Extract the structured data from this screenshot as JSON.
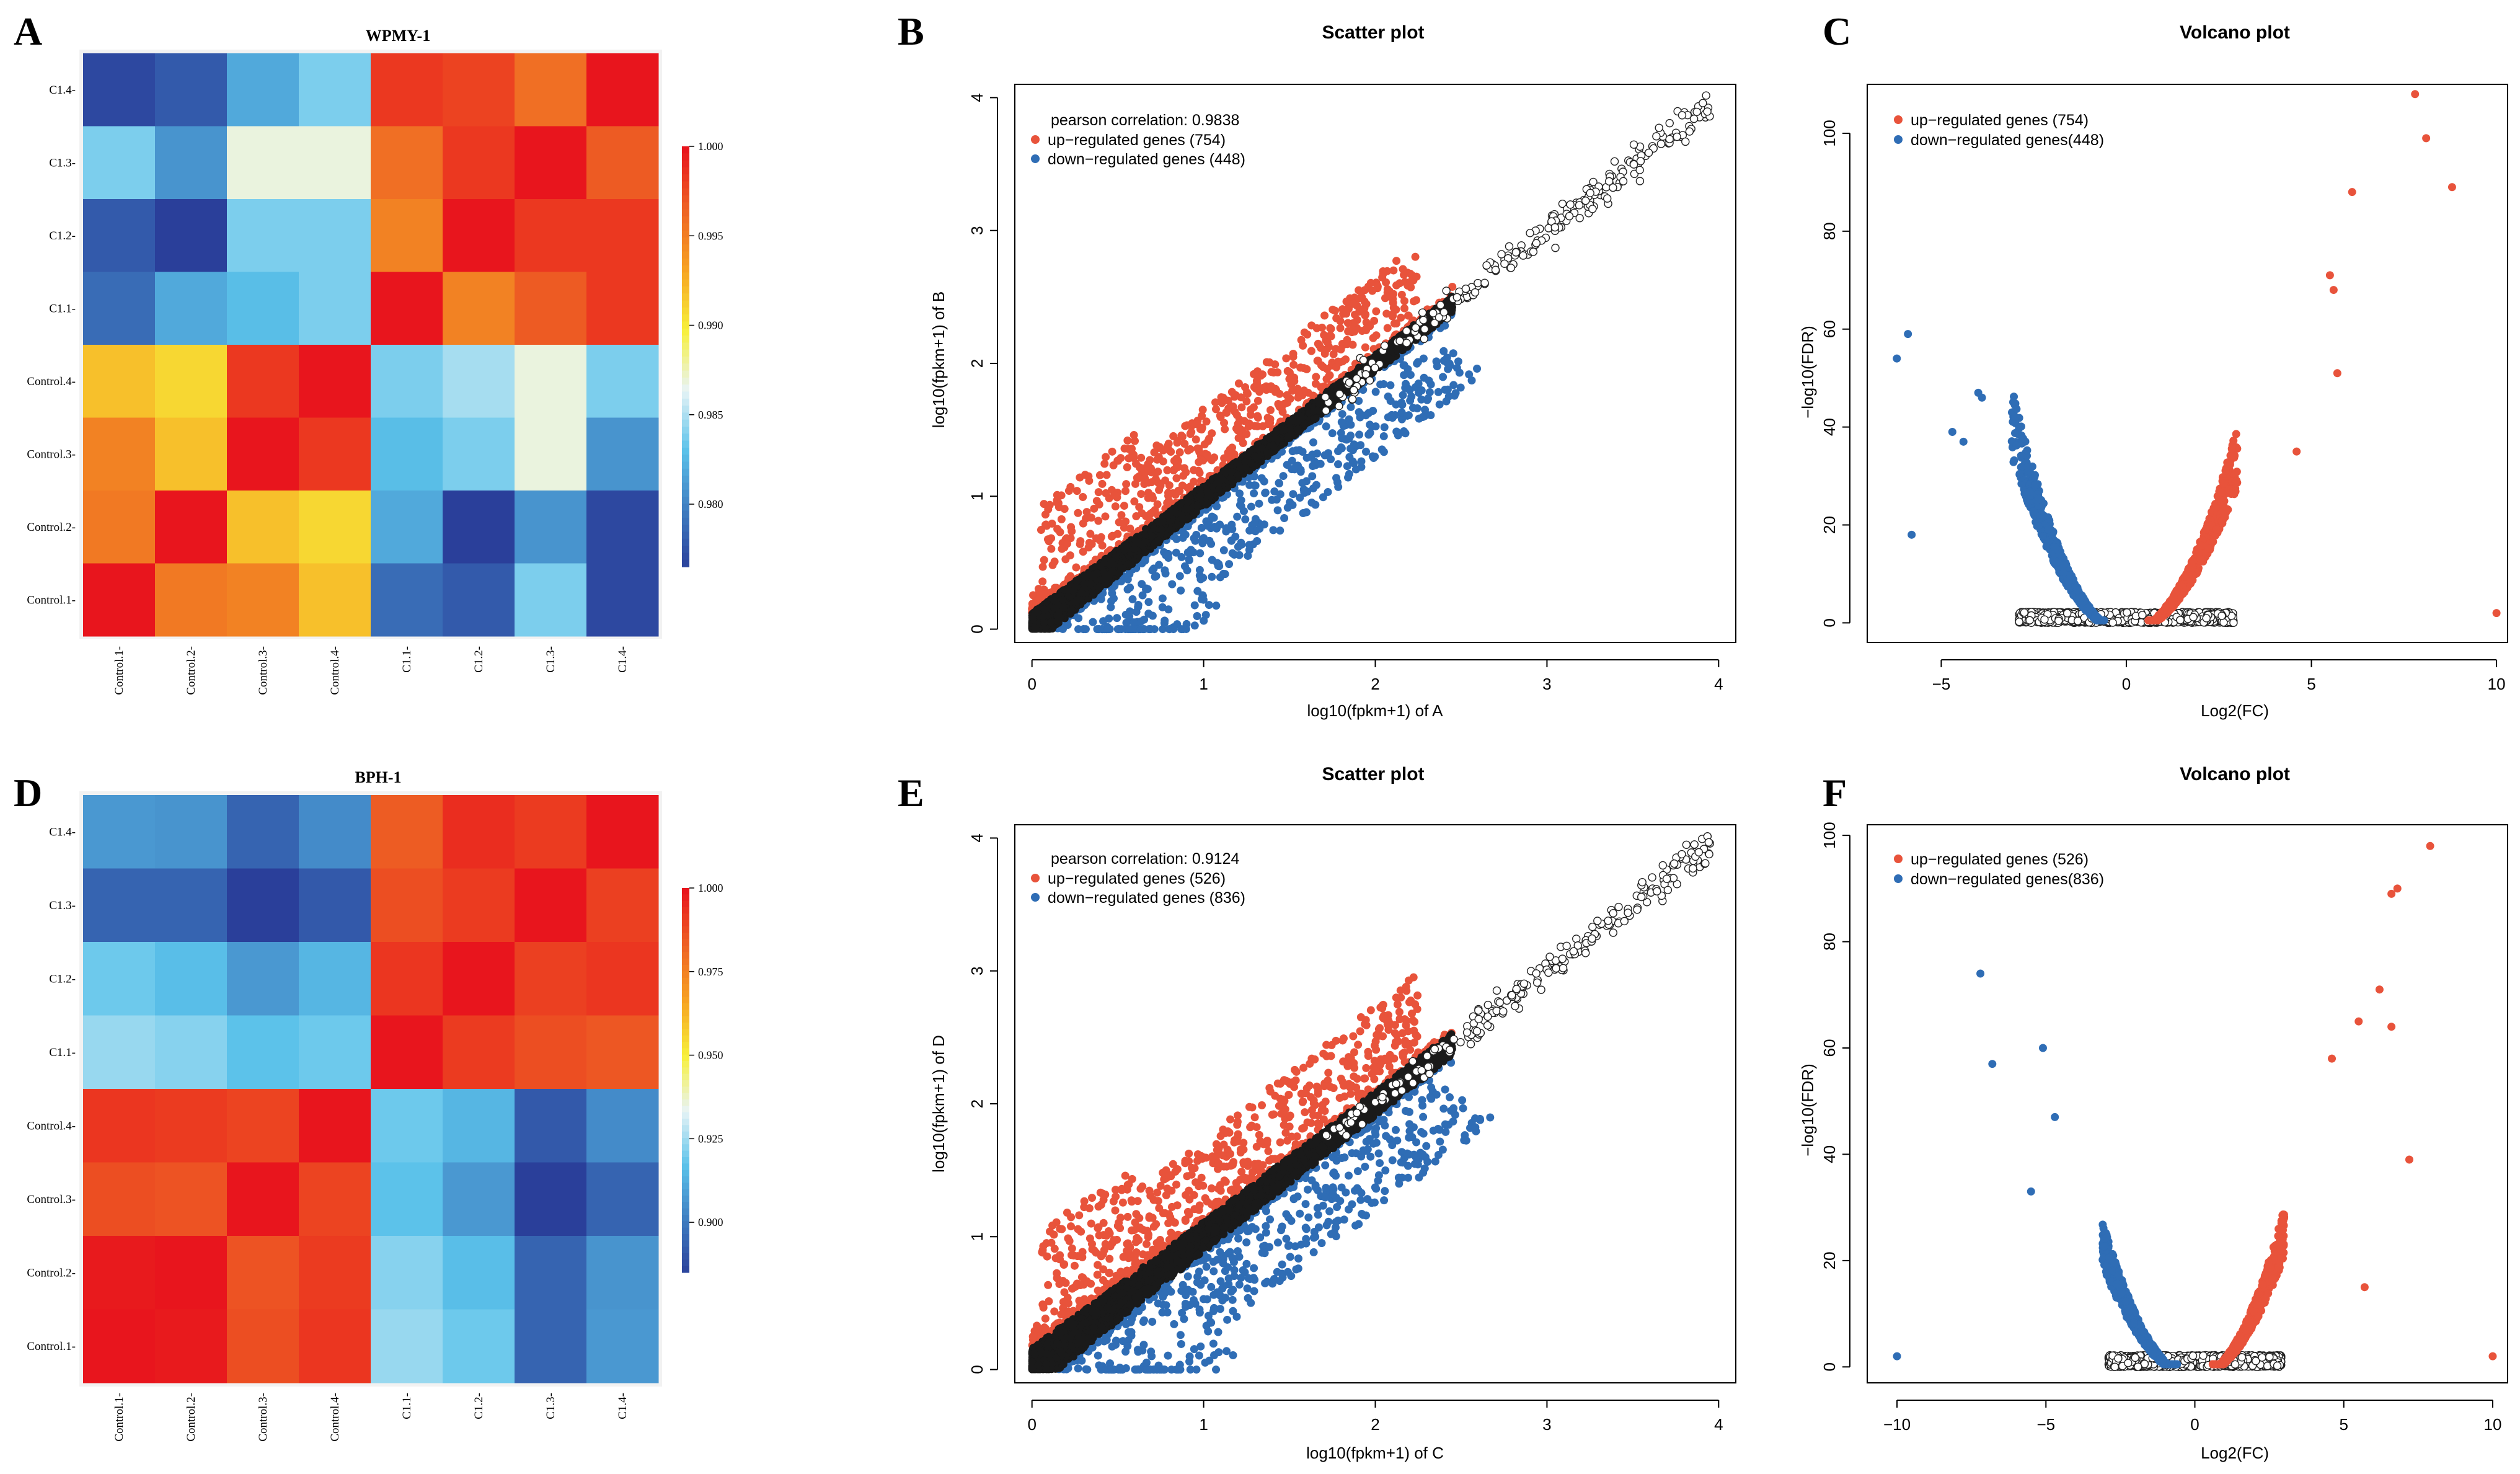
{
  "colors": {
    "up": "#e8533b",
    "down": "#2f6db5",
    "nonsig": "#1a1a1a",
    "heatmap_scale": [
      "#2a3f9a",
      "#3e7cc0",
      "#5bc2ea",
      "#e8f4f6",
      "#f7f03a",
      "#f7a322",
      "#ee6324",
      "#e8151d"
    ]
  },
  "chart_data": [
    {
      "panel": "A",
      "type": "heatmap",
      "title": "WPMY-1",
      "rows": [
        "C1.4",
        "C1.3",
        "C1.2",
        "C1.1",
        "Control.4",
        "Control.3",
        "Control.2",
        "Control.1"
      ],
      "columns": [
        "Control.1",
        "Control.2",
        "Control.3",
        "Control.4",
        "C1.1",
        "C1.2",
        "C1.3",
        "C1.4"
      ],
      "values": [
        [
          0.977,
          0.978,
          0.982,
          0.984,
          0.9985,
          0.998,
          0.996,
          1.0
        ],
        [
          0.984,
          0.981,
          0.987,
          0.987,
          0.996,
          0.9985,
          1.0,
          0.997
        ],
        [
          0.978,
          0.975,
          0.984,
          0.984,
          0.995,
          1.0,
          0.9985,
          0.9985
        ],
        [
          0.979,
          0.982,
          0.983,
          0.984,
          1.0,
          0.995,
          0.997,
          0.9985
        ],
        [
          0.992,
          0.991,
          0.9985,
          1.0,
          0.984,
          0.985,
          0.987,
          0.984
        ],
        [
          0.995,
          0.992,
          1.0,
          0.9985,
          0.983,
          0.984,
          0.987,
          0.981
        ],
        [
          0.9955,
          1.0,
          0.992,
          0.991,
          0.982,
          0.975,
          0.981,
          0.977
        ],
        [
          1.0,
          0.9955,
          0.995,
          0.992,
          0.979,
          0.978,
          0.984,
          0.977
        ]
      ],
      "colorbar_range": [
        0.9765,
        1.0
      ],
      "colorbar_ticks": [
        "1.000",
        "0.995",
        "0.990",
        "0.985",
        "0.980"
      ],
      "colorbar_tick_values": [
        1.0,
        0.995,
        0.99,
        0.985,
        0.98
      ]
    },
    {
      "panel": "B",
      "type": "scatter",
      "title": "Scatter plot",
      "xlabel": "log10(fpkm+1) of A",
      "ylabel": "log10(fpkm+1) of B",
      "xlim": [
        -0.1,
        4.1
      ],
      "ylim": [
        -0.1,
        4.1
      ],
      "xticks": [
        "0",
        "1",
        "2",
        "3",
        "4"
      ],
      "yticks": [
        "0",
        "1",
        "2",
        "3",
        "4"
      ],
      "legend": [
        "pearson correlation: 0.9838",
        "up−regulated genes (754)",
        "down−regulated genes (448)"
      ],
      "legend_position": "top-left",
      "spread": 0.12,
      "max": 3.95,
      "seed": 11
    },
    {
      "panel": "C",
      "type": "scatter",
      "title": "Volcano plot",
      "xlabel": "Log2(FC)",
      "ylabel": "−log10(FDR)",
      "xlim": [
        -7,
        10.3
      ],
      "ylim": [
        -4,
        110
      ],
      "xticks": [
        "−5",
        "0",
        "5",
        "10"
      ],
      "xtick_values": [
        -5,
        0,
        5,
        10
      ],
      "yticks": [
        "0",
        "20",
        "40",
        "60",
        "80",
        "100"
      ],
      "ytick_values": [
        0,
        20,
        40,
        60,
        80,
        100
      ],
      "legend": [
        "up−regulated genes (754)",
        "down−regulated genes(448)"
      ],
      "legend_position": "top-left",
      "outliers_up": [
        [
          7.8,
          108
        ],
        [
          8.1,
          99
        ],
        [
          8.8,
          89
        ],
        [
          6.1,
          88
        ],
        [
          5.5,
          71
        ],
        [
          5.6,
          68
        ],
        [
          10.0,
          2
        ],
        [
          5.7,
          51
        ],
        [
          4.6,
          35
        ]
      ],
      "outliers_down": [
        [
          -5.9,
          59
        ],
        [
          -6.2,
          54
        ],
        [
          -5.8,
          18
        ],
        [
          -4.0,
          47
        ],
        [
          -3.9,
          46
        ],
        [
          -4.7,
          39
        ],
        [
          -4.4,
          37
        ]
      ],
      "seed": 23
    },
    {
      "panel": "D",
      "type": "heatmap",
      "title": "BPH-1",
      "rows": [
        "C1.4",
        "C1.3",
        "C1.2",
        "C1.1",
        "Control.4",
        "Control.3",
        "Control.2",
        "Control.1"
      ],
      "columns": [
        "Control.1",
        "Control.2",
        "Control.3",
        "Control.4",
        "C1.1",
        "C1.2",
        "C1.3",
        "C1.4"
      ],
      "values": [
        [
          0.908,
          0.907,
          0.895,
          0.905,
          0.985,
          0.995,
          0.992,
          1.0
        ],
        [
          0.895,
          0.895,
          0.885,
          0.892,
          0.988,
          0.992,
          1.0,
          0.991
        ],
        [
          0.92,
          0.917,
          0.908,
          0.915,
          0.993,
          1.0,
          0.991,
          0.993
        ],
        [
          0.925,
          0.923,
          0.918,
          0.92,
          1.0,
          0.992,
          0.988,
          0.986
        ],
        [
          0.993,
          0.992,
          0.99,
          1.0,
          0.92,
          0.915,
          0.892,
          0.905
        ],
        [
          0.988,
          0.987,
          1.0,
          0.99,
          0.918,
          0.908,
          0.885,
          0.895
        ],
        [
          0.999,
          1.0,
          0.987,
          0.992,
          0.923,
          0.917,
          0.895,
          0.907
        ],
        [
          1.0,
          0.999,
          0.988,
          0.993,
          0.925,
          0.92,
          0.895,
          0.908
        ]
      ],
      "colorbar_range": [
        0.885,
        1.0
      ],
      "colorbar_ticks": [
        "1.000",
        "0.975",
        "0.950",
        "0.925",
        "0.900"
      ],
      "colorbar_tick_values": [
        1.0,
        0.975,
        0.95,
        0.925,
        0.9
      ]
    },
    {
      "panel": "E",
      "type": "scatter",
      "title": "Scatter plot",
      "xlabel": "log10(fpkm+1) of C",
      "ylabel": "log10(fpkm+1) of D",
      "xlim": [
        -0.1,
        4.1
      ],
      "ylim": [
        -0.1,
        4.1
      ],
      "xticks": [
        "0",
        "1",
        "2",
        "3",
        "4"
      ],
      "yticks": [
        "0",
        "1",
        "2",
        "3",
        "4"
      ],
      "legend": [
        "pearson correlation: 0.9124",
        "up−regulated genes (526)",
        "down−regulated genes (836)"
      ],
      "legend_position": "top-left",
      "spread": 0.16,
      "max": 3.95,
      "seed": 37
    },
    {
      "panel": "F",
      "type": "scatter",
      "title": "Volcano plot",
      "xlabel": "Log2(FC)",
      "ylabel": "−log10(FDR)",
      "xlim": [
        -11,
        10.5
      ],
      "ylim": [
        -3,
        102
      ],
      "xticks": [
        "−10",
        "−5",
        "0",
        "5",
        "10"
      ],
      "xtick_values": [
        -10,
        -5,
        0,
        5,
        10
      ],
      "yticks": [
        "0",
        "20",
        "40",
        "60",
        "80",
        "100"
      ],
      "ytick_values": [
        0,
        20,
        40,
        60,
        80,
        100
      ],
      "legend": [
        "up−regulated genes (526)",
        "down−regulated genes(836)"
      ],
      "legend_position": "top-left",
      "outliers_up": [
        [
          7.9,
          98
        ],
        [
          6.6,
          89
        ],
        [
          6.8,
          90
        ],
        [
          6.2,
          71
        ],
        [
          5.5,
          65
        ],
        [
          6.6,
          64
        ],
        [
          7.2,
          39
        ],
        [
          5.7,
          15
        ],
        [
          10.0,
          2
        ],
        [
          4.6,
          58
        ]
      ],
      "outliers_down": [
        [
          -7.2,
          74
        ],
        [
          -6.8,
          57
        ],
        [
          -5.1,
          60
        ],
        [
          -10.0,
          2
        ],
        [
          -5.5,
          33
        ],
        [
          -4.7,
          47
        ]
      ],
      "seed": 51
    }
  ],
  "panels": {
    "A": "A",
    "B": "B",
    "C": "C",
    "D": "D",
    "E": "E",
    "F": "F"
  }
}
